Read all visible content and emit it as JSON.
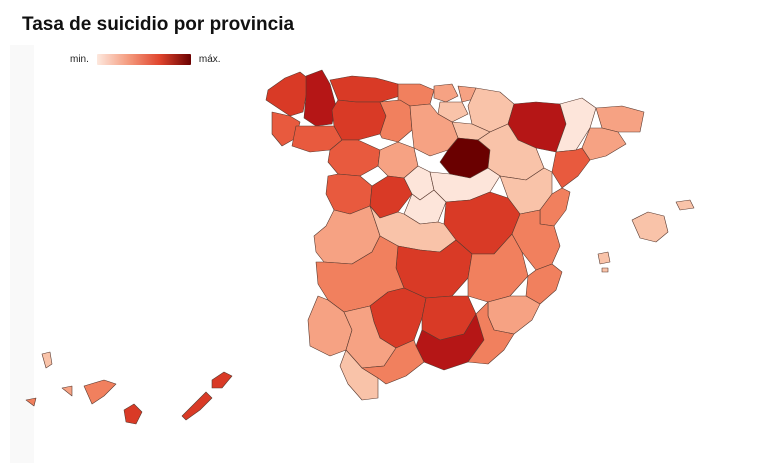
{
  "title": "Tasa de suicidio por provincia",
  "legend": {
    "min_label": "min.",
    "max_label": "máx.",
    "color_min": "#fde8de",
    "color_max": "#6a0000"
  },
  "palette": {
    "c1": "#fde5da",
    "c2": "#f9c3a9",
    "c3": "#f6a283",
    "c4": "#f1805e",
    "c5": "#e85a3e",
    "c6": "#d93a26",
    "c7": "#b51616",
    "c8": "#6a0000"
  }
}
